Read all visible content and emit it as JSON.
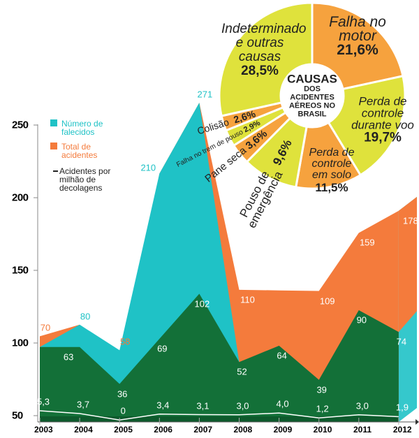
{
  "chart_data": [
    {
      "type": "area",
      "categories": [
        "2003",
        "2004",
        "2005",
        "2006",
        "2007",
        "2008",
        "2009",
        "2010",
        "2011",
        "2012"
      ],
      "yticks": [
        50,
        100,
        150,
        200,
        250
      ],
      "ylim": [
        45,
        275
      ],
      "legend_position": "top-left",
      "grid": false,
      "legend": [
        {
          "label": "Número de falecidos",
          "color": "#1FC2C6"
        },
        {
          "label": "Total de acidentes",
          "color": "#F47B3C"
        },
        {
          "label": "Acidentes por milhão de decolagens",
          "color": "#222222"
        }
      ],
      "series": [
        {
          "values": [
            70,
            80,
            58,
            210,
            271,
            110,
            null,
            109,
            159,
            178
          ],
          "label_colors": [
            "#F47B3C",
            "#1FC2C6",
            "#F47B3C",
            "#1FC2C6",
            "#1FC2C6",
            "#FFFFFF",
            "",
            "#FFFFFF",
            "#FFFFFF",
            "#FFFFFF"
          ]
        },
        {
          "values": [
            null,
            63,
            36,
            69,
            102,
            52,
            64,
            39,
            90,
            74
          ],
          "color": "#137038"
        },
        {
          "values": [
            5.3,
            3.7,
            0,
            3.4,
            3.1,
            3.0,
            4.0,
            1.2,
            3.0,
            1.9
          ],
          "labels": [
            "5,3",
            "3,7",
            "0",
            "3,4",
            "3,1",
            "3,0",
            "4,0",
            "1,2",
            "3,0",
            "1,9"
          ],
          "color": "#FFFFFF"
        }
      ]
    },
    {
      "type": "pie",
      "title": "CAUSAS",
      "subtitle": "DOS ACIDENTES AÉREOS NO BRASIL",
      "slices": [
        {
          "label": "Falha no motor",
          "value": 21.6,
          "text": "21,6%",
          "color": "#F6A23E"
        },
        {
          "label": "Perda de controle durante voo",
          "value": 19.7,
          "text": "19,7%",
          "color": "#DFE23C"
        },
        {
          "label": "Perda de controle em solo",
          "value": 11.5,
          "text": "11,5%",
          "color": "#F6A23E"
        },
        {
          "label": "Pouso de emergência",
          "value": 9.6,
          "text": "9,6%",
          "color": "#DFE23C"
        },
        {
          "label": "Pane seca",
          "value": 3.6,
          "text": "3,6%",
          "color": "#F6A23E"
        },
        {
          "label": "Falha no trem de pouso",
          "value": 2.9,
          "text": "2,9%",
          "color": "#DFE23C"
        },
        {
          "label": "Colisão",
          "value": 2.6,
          "text": "2,6%",
          "color": "#F6A23E"
        },
        {
          "label": "Indeterminado e outras causas",
          "value": 28.5,
          "text": "28,5%",
          "color": "#DFE23C"
        }
      ]
    }
  ]
}
